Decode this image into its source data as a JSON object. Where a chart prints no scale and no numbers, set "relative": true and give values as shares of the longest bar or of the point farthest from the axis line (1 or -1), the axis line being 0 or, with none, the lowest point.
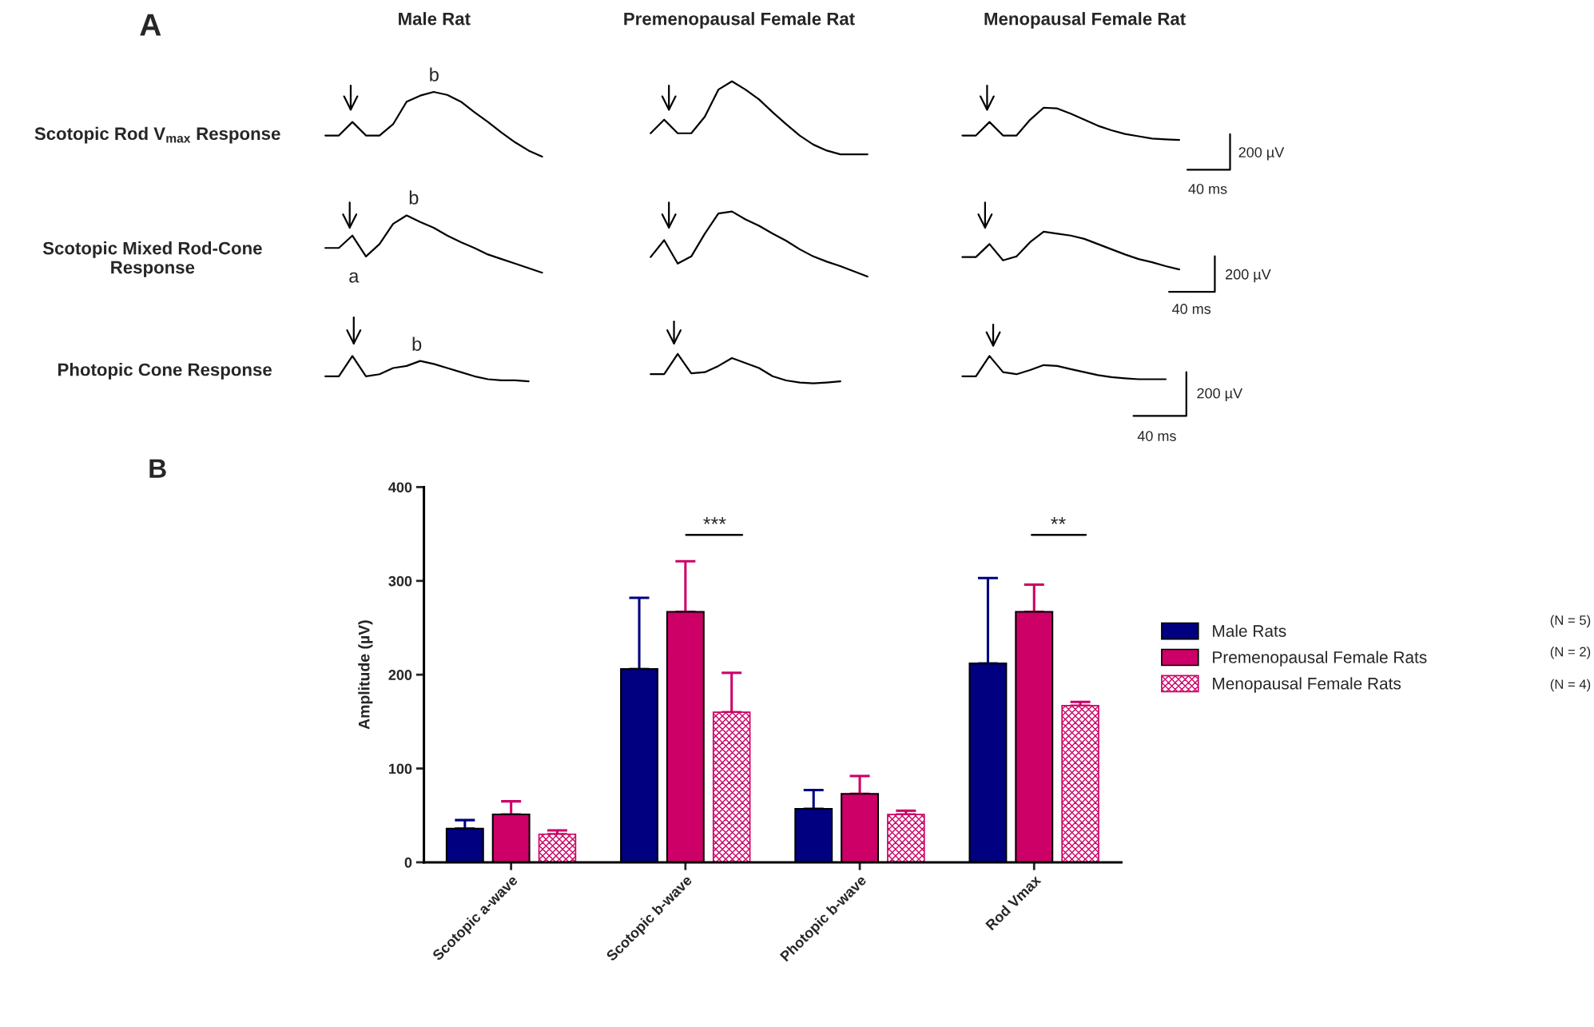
{
  "chart_data": [
    {
      "type": "line",
      "relative": true,
      "ylabel": "Scotopic Rod V$_{max}$ Response",
      "annotations": [
        "A",
        "Male Rat",
        "Premenopausal Female Rat",
        "Menopausal Female Rat",
        "b",
        "200 µV",
        "40 ms"
      ],
      "categories": [
        null,
        null,
        null,
        null,
        null,
        null,
        null,
        null,
        null,
        null,
        null,
        null,
        null,
        null,
        null,
        null,
        null,
        null,
        null,
        null,
        null,
        null,
        null,
        null,
        null,
        null,
        null,
        null,
        null,
        null,
        null,
        null,
        null,
        null,
        null,
        null,
        null,
        null,
        null,
        null,
        null,
        null,
        null,
        null,
        null,
        null,
        null,
        null,
        null,
        null,
        null,
        null,
        null,
        null,
        null,
        null,
        null,
        null,
        null,
        null,
        null,
        null,
        null,
        null
      ],
      "series": [
        {
          "color": "#000000",
          "values": [
            0.28,
            0.28,
            0.46,
            0.28,
            0.28,
            0.43,
            0.73,
            0.81,
            0.86,
            0.82,
            0.73,
            0.59,
            0.46,
            0.32,
            0.19,
            0.08,
            0.0,
            null,
            null,
            null,
            null,
            null,
            null,
            null,
            null,
            null,
            null,
            null,
            null,
            null,
            null,
            null,
            null,
            null,
            null,
            null,
            null,
            null,
            null,
            null,
            null,
            null,
            null,
            null,
            null,
            null,
            null,
            null,
            null,
            null,
            null,
            null,
            null,
            null,
            null,
            null,
            null,
            null,
            null,
            null,
            null,
            null,
            null,
            null
          ]
        },
        {
          "color": "#000000",
          "values": [
            null,
            null,
            null,
            null,
            null,
            null,
            null,
            null,
            null,
            null,
            null,
            null,
            null,
            null,
            null,
            null,
            null,
            null,
            null,
            null,
            null,
            null,
            null,
            null,
            0.31,
            0.49,
            0.31,
            0.31,
            0.53,
            0.89,
            1.0,
            0.89,
            0.76,
            0.59,
            0.43,
            0.28,
            0.16,
            0.08,
            0.03,
            0.03,
            0.03,
            null,
            null,
            null,
            null,
            null,
            null,
            null,
            null,
            null,
            null,
            null,
            null,
            null,
            null,
            null,
            null,
            null,
            null,
            null,
            null,
            null,
            null,
            null
          ]
        },
        {
          "color": "#000000",
          "values": [
            null,
            null,
            null,
            null,
            null,
            null,
            null,
            null,
            null,
            null,
            null,
            null,
            null,
            null,
            null,
            null,
            null,
            null,
            null,
            null,
            null,
            null,
            null,
            null,
            null,
            null,
            null,
            null,
            null,
            null,
            null,
            null,
            null,
            null,
            null,
            null,
            null,
            null,
            null,
            null,
            null,
            null,
            null,
            null,
            null,
            null,
            null,
            0.28,
            0.28,
            0.46,
            0.28,
            0.28,
            0.49,
            0.65,
            0.64,
            0.57,
            0.49,
            0.41,
            0.35,
            0.3,
            0.27,
            0.24,
            0.23,
            0.22
          ]
        }
      ]
    },
    {
      "type": "line",
      "relative": true,
      "ylabel": "Scotopic Mixed Rod-Cone\nResponse",
      "annotations": [
        "b",
        "a",
        "200 µV",
        "40 ms"
      ],
      "categories": [
        null,
        null,
        null,
        null,
        null,
        null,
        null,
        null,
        null,
        null,
        null,
        null,
        null,
        null,
        null,
        null,
        null,
        null,
        null,
        null,
        null,
        null,
        null,
        null,
        null,
        null,
        null,
        null,
        null,
        null,
        null,
        null,
        null,
        null,
        null,
        null,
        null,
        null,
        null,
        null,
        null,
        null,
        null,
        null,
        null,
        null,
        null,
        null,
        null,
        null,
        null,
        null,
        null,
        null,
        null,
        null,
        null,
        null,
        null,
        null,
        null,
        null,
        null,
        null
      ],
      "series": [
        {
          "color": "#000000",
          "values": [
            0.44,
            0.44,
            0.63,
            0.31,
            0.5,
            0.81,
            0.94,
            0.84,
            0.75,
            0.63,
            0.53,
            0.44,
            0.34,
            0.27,
            0.2,
            0.13,
            0.06,
            null,
            null,
            null,
            null,
            null,
            null,
            null,
            null,
            null,
            null,
            null,
            null,
            null,
            null,
            null,
            null,
            null,
            null,
            null,
            null,
            null,
            null,
            null,
            null,
            null,
            null,
            null,
            null,
            null,
            null,
            null,
            null,
            null,
            null,
            null,
            null,
            null,
            null,
            null,
            null,
            null,
            null,
            null,
            null,
            null,
            null,
            null
          ]
        },
        {
          "color": "#000000",
          "values": [
            null,
            null,
            null,
            null,
            null,
            null,
            null,
            null,
            null,
            null,
            null,
            null,
            null,
            null,
            null,
            null,
            null,
            null,
            null,
            null,
            null,
            null,
            null,
            null,
            0.3,
            0.56,
            0.2,
            0.31,
            0.66,
            0.97,
            1.0,
            0.88,
            0.78,
            0.66,
            0.55,
            0.42,
            0.31,
            0.23,
            0.16,
            0.08,
            0.0,
            null,
            null,
            null,
            null,
            null,
            null,
            null,
            null,
            null,
            null,
            null,
            null,
            null,
            null,
            null,
            null,
            null,
            null,
            null,
            null,
            null,
            null,
            null
          ]
        },
        {
          "color": "#000000",
          "values": [
            null,
            null,
            null,
            null,
            null,
            null,
            null,
            null,
            null,
            null,
            null,
            null,
            null,
            null,
            null,
            null,
            null,
            null,
            null,
            null,
            null,
            null,
            null,
            null,
            null,
            null,
            null,
            null,
            null,
            null,
            null,
            null,
            null,
            null,
            null,
            null,
            null,
            null,
            null,
            null,
            null,
            null,
            null,
            null,
            null,
            null,
            null,
            0.3,
            0.3,
            0.5,
            0.25,
            0.31,
            0.53,
            0.69,
            0.66,
            0.63,
            0.58,
            0.5,
            0.42,
            0.34,
            0.27,
            0.22,
            0.16,
            0.11
          ]
        }
      ]
    },
    {
      "type": "line",
      "relative": true,
      "ylabel": "Photopic Cone Response",
      "annotations": [
        "b",
        "200 µV",
        "40 ms"
      ],
      "categories": [
        null,
        null,
        null,
        null,
        null,
        null,
        null,
        null,
        null,
        null,
        null,
        null,
        null,
        null,
        null,
        null,
        null,
        null,
        null,
        null,
        null,
        null,
        null,
        null,
        null,
        null,
        null,
        null,
        null,
        null,
        null,
        null,
        null,
        null,
        null,
        null,
        null,
        null,
        null,
        null,
        null,
        null,
        null,
        null,
        null,
        null,
        null,
        null,
        null,
        null,
        null,
        null,
        null,
        null,
        null,
        null,
        null,
        null,
        null,
        null,
        null,
        null,
        null,
        null
      ],
      "series": [
        {
          "color": "#000000",
          "values": [
            0.24,
            0.24,
            0.93,
            0.24,
            0.31,
            0.52,
            0.59,
            0.76,
            0.66,
            0.52,
            0.38,
            0.24,
            0.14,
            0.1,
            0.1,
            0.07,
            null,
            null,
            null,
            null,
            null,
            null,
            null,
            null,
            null,
            null,
            null,
            null,
            null,
            null,
            null,
            null,
            null,
            null,
            null,
            null,
            null,
            null,
            null,
            null,
            null,
            null,
            null,
            null,
            null,
            null,
            null,
            null,
            null,
            null,
            null,
            null,
            null,
            null,
            null,
            null,
            null,
            null,
            null,
            null,
            null,
            null,
            null,
            null
          ]
        },
        {
          "color": "#000000",
          "values": [
            null,
            null,
            null,
            null,
            null,
            null,
            null,
            null,
            null,
            null,
            null,
            null,
            null,
            null,
            null,
            null,
            null,
            null,
            null,
            null,
            null,
            null,
            null,
            null,
            0.31,
            0.31,
            1.0,
            0.34,
            0.38,
            0.59,
            0.86,
            0.69,
            0.52,
            0.24,
            0.1,
            0.03,
            0.0,
            0.03,
            0.07,
            null,
            null,
            null,
            null,
            null,
            null,
            null,
            null,
            null,
            null,
            null,
            null,
            null,
            null,
            null,
            null,
            null,
            null,
            null,
            null,
            null,
            null,
            null,
            null,
            null
          ]
        },
        {
          "color": "#000000",
          "values": [
            null,
            null,
            null,
            null,
            null,
            null,
            null,
            null,
            null,
            null,
            null,
            null,
            null,
            null,
            null,
            null,
            null,
            null,
            null,
            null,
            null,
            null,
            null,
            null,
            null,
            null,
            null,
            null,
            null,
            null,
            null,
            null,
            null,
            null,
            null,
            null,
            null,
            null,
            null,
            null,
            null,
            null,
            null,
            null,
            null,
            null,
            null,
            0.24,
            0.24,
            0.93,
            0.38,
            0.31,
            0.45,
            0.62,
            0.59,
            0.48,
            0.38,
            0.28,
            0.21,
            0.17,
            0.14,
            0.14,
            0.14,
            null
          ]
        }
      ]
    },
    {
      "type": "bar",
      "ylabel": "Amplitude (µV)",
      "categories": [
        "Scotopic a-wave",
        "Scotopic b-wave",
        "Photopic b-wave",
        "Rod Vmax"
      ],
      "ylim": [
        0,
        400
      ],
      "yticks": [
        0,
        100,
        200,
        300,
        400
      ],
      "legend": "right",
      "annotations": [
        "B",
        "***",
        "**",
        "(N = 5)",
        "(N = 2)",
        "(N = 4)"
      ],
      "series": [
        {
          "name": "Male Rats",
          "color": "#000080",
          "values": [
            36,
            206,
            57,
            212
          ],
          "errors": [
            [
              36,
              45
            ],
            [
              206,
              282
            ],
            [
              57,
              77
            ],
            [
              212,
              303
            ]
          ]
        },
        {
          "name": "Premenopausal Female Rats",
          "color": "#cc0066",
          "values": [
            51,
            267,
            73,
            267
          ],
          "errors": [
            [
              51,
              65
            ],
            [
              267,
              321
            ],
            [
              73,
              92
            ],
            [
              267,
              296
            ]
          ]
        },
        {
          "name": "Menopausal Female Rats",
          "color": "#cc0066",
          "values": [
            30,
            160,
            51,
            167
          ],
          "errors": [
            [
              30,
              34
            ],
            [
              160,
              202
            ],
            [
              51,
              55
            ],
            [
              167,
              171
            ]
          ]
        }
      ]
    }
  ]
}
